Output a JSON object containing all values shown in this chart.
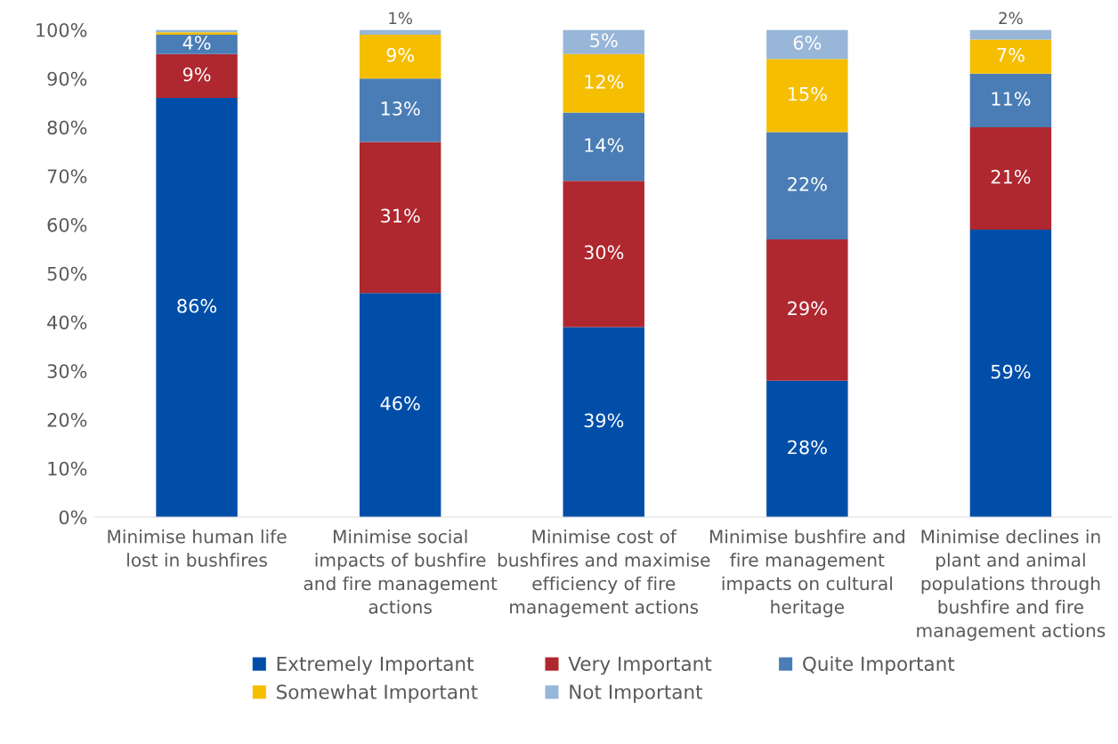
{
  "chart_data": {
    "type": "bar",
    "stacked": true,
    "categories": [
      "Minimise human life lost in bushfires",
      "Minimise social impacts of bushfire and fire management actions",
      "Minimise cost of bushfires and maximise efficiency of fire management actions",
      "Minimise bushfire and fire management impacts on cultural heritage",
      "Minimise declines in plant and animal populations through bushfire and fire management actions"
    ],
    "series": [
      {
        "name": "Extremely Important",
        "color": "#004ea8",
        "values": [
          86,
          46,
          39,
          28,
          59
        ],
        "value_labels": [
          "86%",
          "46%",
          "39%",
          "28%",
          "59%"
        ]
      },
      {
        "name": "Very Important",
        "color": "#af272f",
        "values": [
          9,
          31,
          30,
          29,
          21
        ],
        "value_labels": [
          "9%",
          "31%",
          "30%",
          "29%",
          "21%"
        ]
      },
      {
        "name": "Quite Important",
        "color": "#4a7db5",
        "values": [
          4,
          13,
          14,
          22,
          11
        ],
        "value_labels": [
          "4%",
          "13%",
          "14%",
          "22%",
          "11%"
        ]
      },
      {
        "name": "Somewhat Important",
        "color": "#f6be00",
        "values": [
          0.5,
          9,
          12,
          15,
          7
        ],
        "value_labels": [
          null,
          "9%",
          "12%",
          "15%",
          "7%"
        ]
      },
      {
        "name": "Not Important",
        "color": "#98b6d8",
        "values": [
          0.5,
          1,
          5,
          6,
          2
        ],
        "value_labels": [
          null,
          "1%",
          "5%",
          "6%",
          "2%"
        ]
      }
    ],
    "ylim": [
      0,
      100
    ],
    "yticks": [
      {
        "value": 0,
        "label": "0%"
      },
      {
        "value": 10,
        "label": "10%"
      },
      {
        "value": 20,
        "label": "20%"
      },
      {
        "value": 30,
        "label": "30%"
      },
      {
        "value": 40,
        "label": "40%"
      },
      {
        "value": 50,
        "label": "50%"
      },
      {
        "value": 60,
        "label": "60%"
      },
      {
        "value": 70,
        "label": "70%"
      },
      {
        "value": 80,
        "label": "80%"
      },
      {
        "value": 90,
        "label": "90%"
      },
      {
        "value": 100,
        "label": "100%"
      }
    ],
    "grid": false,
    "legend": "bottom"
  }
}
